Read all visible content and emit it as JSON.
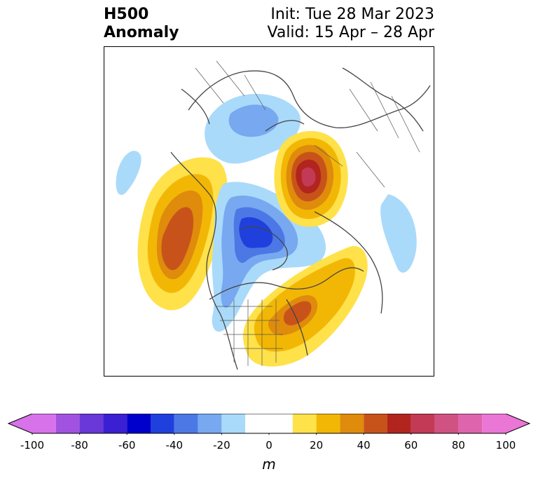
{
  "header": {
    "left_line1": "H500",
    "left_line2": "Anomaly",
    "init": "Init: Tue 28 Mar 2023",
    "valid": "Valid: 15 Apr – 28 Apr"
  },
  "map": {
    "field": "500 hPa geopotential height anomaly",
    "projection": "north-polar stereographic",
    "features": [
      {
        "name": "positive-anomaly-west-russia",
        "sign": "+",
        "peak_m": 65
      },
      {
        "name": "positive-anomaly-northeast-pacific",
        "sign": "+",
        "peak_m": 55
      },
      {
        "name": "positive-anomaly-eastern-north-america",
        "sign": "+",
        "peak_m": 50
      },
      {
        "name": "negative-anomaly-canadian-arctic",
        "sign": "-",
        "peak_m": -45
      },
      {
        "name": "negative-anomaly-greenland-scandinavia",
        "sign": "-",
        "peak_m": -25
      },
      {
        "name": "negative-anomaly-east-siberia",
        "sign": "-",
        "peak_m": -15
      },
      {
        "name": "negative-anomaly-western-north-america",
        "sign": "-",
        "peak_m": -20
      }
    ]
  },
  "colorbar": {
    "unit": "m",
    "ticks": [
      "-100",
      "-80",
      "-60",
      "-40",
      "-20",
      "0",
      "20",
      "40",
      "60",
      "80",
      "100"
    ],
    "segments": [
      {
        "from": -100,
        "to": -90,
        "color": "#d772ea"
      },
      {
        "from": -90,
        "to": -80,
        "color": "#a153e0"
      },
      {
        "from": -80,
        "to": -70,
        "color": "#6a37d8"
      },
      {
        "from": -70,
        "to": -60,
        "color": "#3a1fd3"
      },
      {
        "from": -60,
        "to": -50,
        "color": "#0000cc"
      },
      {
        "from": -50,
        "to": -40,
        "color": "#2040dd"
      },
      {
        "from": -40,
        "to": -30,
        "color": "#4c78e6"
      },
      {
        "from": -30,
        "to": -20,
        "color": "#78a8f0"
      },
      {
        "from": -20,
        "to": -10,
        "color": "#aadafa"
      },
      {
        "from": -10,
        "to": 10,
        "color": "#ffffff"
      },
      {
        "from": 10,
        "to": 20,
        "color": "#ffe14a"
      },
      {
        "from": 20,
        "to": 30,
        "color": "#f2b705"
      },
      {
        "from": 30,
        "to": 40,
        "color": "#df8b0c"
      },
      {
        "from": 40,
        "to": 50,
        "color": "#c8531a"
      },
      {
        "from": 50,
        "to": 60,
        "color": "#b2241e"
      },
      {
        "from": 60,
        "to": 70,
        "color": "#c23a55"
      },
      {
        "from": 70,
        "to": 80,
        "color": "#d05282"
      },
      {
        "from": 80,
        "to": 90,
        "color": "#dd64ad"
      },
      {
        "from": 90,
        "to": 100,
        "color": "#ea76d5"
      }
    ],
    "extend_low_color": "#d772ea",
    "extend_high_color": "#ea76d5"
  }
}
